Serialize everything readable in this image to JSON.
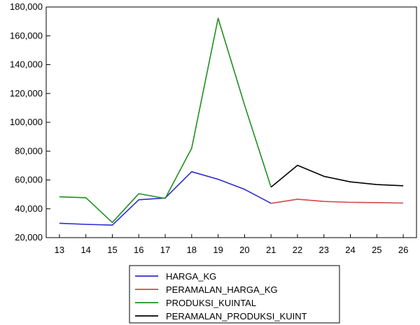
{
  "chart_data": {
    "type": "line",
    "x": [
      13,
      14,
      15,
      16,
      17,
      18,
      19,
      20,
      21,
      22,
      23,
      24,
      25,
      26
    ],
    "xlim": [
      12.5,
      26.5
    ],
    "ylim": [
      20000,
      180000
    ],
    "yticks": [
      20000,
      40000,
      60000,
      80000,
      100000,
      120000,
      140000,
      160000,
      180000
    ],
    "ytick_labels": [
      "20,000",
      "40,000",
      "60,000",
      "80,000",
      "100,000",
      "120,000",
      "140,000",
      "160,000",
      "180,000"
    ],
    "xtick_labels": [
      "13",
      "14",
      "15",
      "16",
      "17",
      "18",
      "19",
      "20",
      "21",
      "22",
      "23",
      "24",
      "25",
      "26"
    ],
    "grid": false,
    "legend_position": "bottom",
    "series": [
      {
        "name": "HARGA_KG",
        "color": "#2b2bd4",
        "points": [
          [
            13,
            30000
          ],
          [
            14,
            29200
          ],
          [
            15,
            28700
          ],
          [
            16,
            46300
          ],
          [
            17,
            47500
          ],
          [
            18,
            65700
          ],
          [
            19,
            60500
          ],
          [
            20,
            53500
          ],
          [
            21,
            43800
          ]
        ]
      },
      {
        "name": "PERAMALAN_HARGA_KG",
        "color": "#d44848",
        "points": [
          [
            21,
            43800
          ],
          [
            22,
            46600
          ],
          [
            23,
            45100
          ],
          [
            24,
            44500
          ],
          [
            25,
            44300
          ],
          [
            26,
            44000
          ]
        ]
      },
      {
        "name": "PRODUKSI_KUINTAL",
        "color": "#1f8f1f",
        "points": [
          [
            13,
            48300
          ],
          [
            14,
            47700
          ],
          [
            15,
            30500
          ],
          [
            16,
            50500
          ],
          [
            17,
            47200
          ],
          [
            18,
            82000
          ],
          [
            19,
            172200
          ],
          [
            20,
            112000
          ],
          [
            21,
            55000
          ]
        ]
      },
      {
        "name": "PERAMALAN_PRODUKSI_KUINT",
        "color": "#000000",
        "points": [
          [
            21,
            55000
          ],
          [
            22,
            70200
          ],
          [
            23,
            62500
          ],
          [
            24,
            58700
          ],
          [
            25,
            56800
          ],
          [
            26,
            56000
          ]
        ]
      }
    ]
  }
}
